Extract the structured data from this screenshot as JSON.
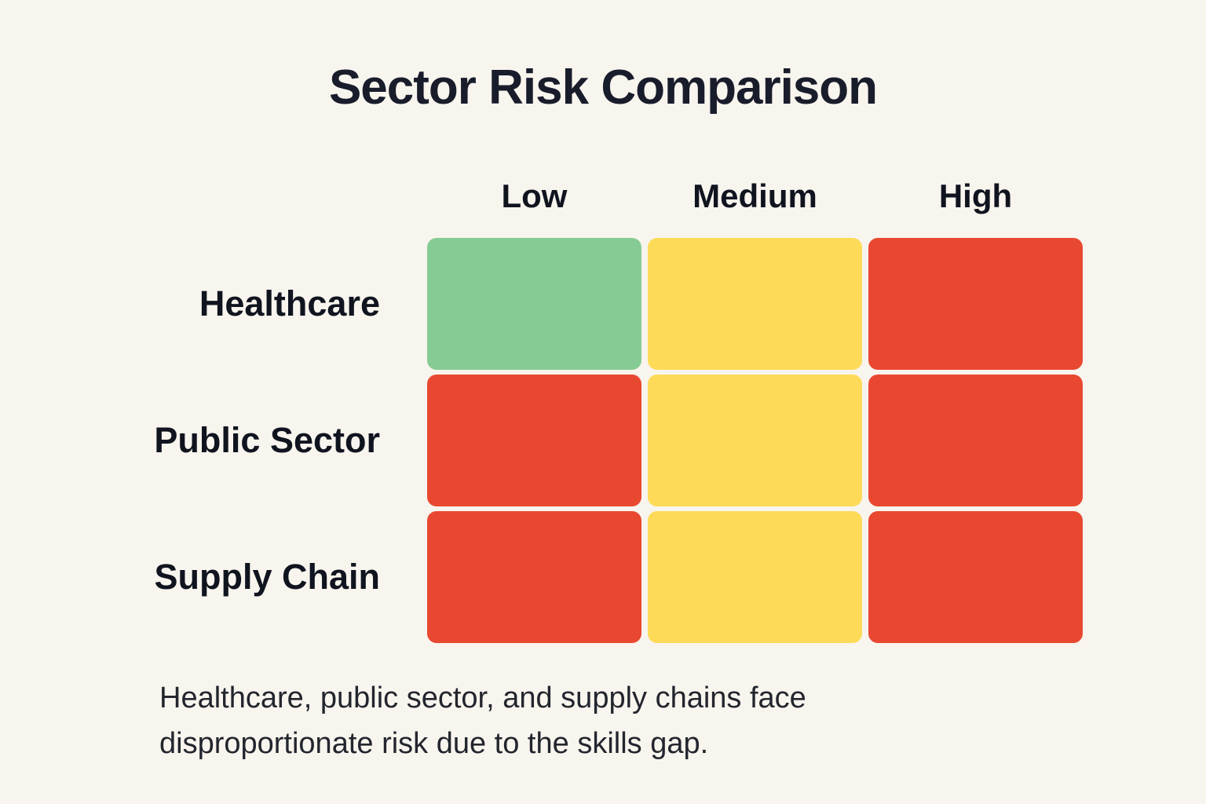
{
  "title": "Sector Risk Comparison",
  "caption_lines": [
    "Healthcare, public sector, and supply chains face",
    "disproportionate risk due to the skills gap."
  ],
  "chart_data": {
    "type": "heatmap",
    "title": "Sector Risk Comparison",
    "columns": [
      "Low",
      "Medium",
      "High"
    ],
    "rows": [
      "Healthcare",
      "Public Sector",
      "Supply Chain"
    ],
    "cells": [
      [
        "green",
        "yellow",
        "red"
      ],
      [
        "red",
        "yellow",
        "red"
      ],
      [
        "red",
        "yellow",
        "red"
      ]
    ],
    "palette": {
      "green": "#87cb94",
      "yellow": "#fddb58",
      "red": "#e94830"
    },
    "caption": "Healthcare, public sector, and supply chains face disproportionate risk due to the skills gap.",
    "legend_position": "none",
    "grid": false
  },
  "colors": {
    "background": "#f8f5ee",
    "title_text": "#191c2b",
    "label_text": "#10141f",
    "caption_text": "#23252e"
  }
}
